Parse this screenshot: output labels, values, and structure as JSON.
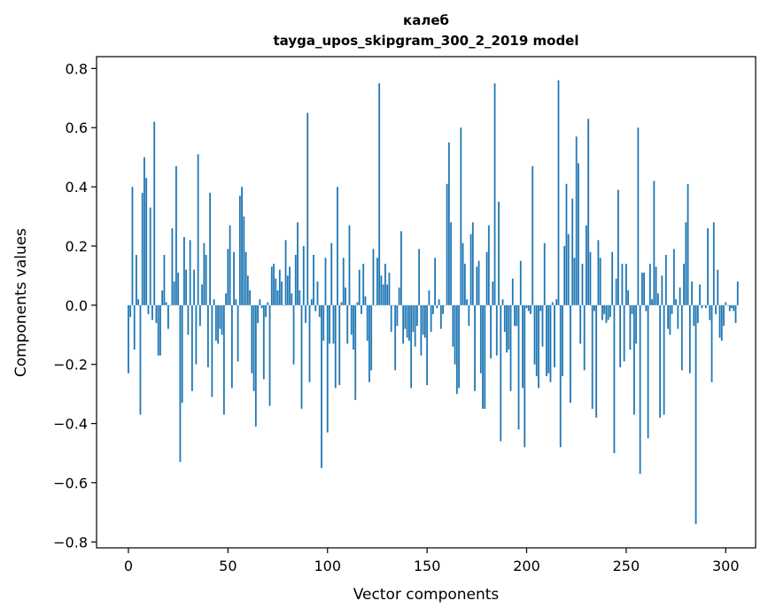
{
  "chart_data": {
    "type": "bar",
    "title": "калеб",
    "subtitle": "tayga_upos_skipgram_300_2_2019 model",
    "xlabel": "Vector components",
    "ylabel": "Components values",
    "xlim": [
      -16,
      315
    ],
    "ylim": [
      -0.82,
      0.84
    ],
    "xticks": [
      0,
      50,
      100,
      150,
      200,
      250,
      300
    ],
    "yticks": [
      -0.8,
      -0.6,
      -0.4,
      -0.2,
      0.0,
      0.2,
      0.4,
      0.6,
      0.8
    ],
    "ytick_labels": [
      "−0.8",
      "−0.6",
      "−0.4",
      "−0.2",
      "0.0",
      "0.2",
      "0.4",
      "0.6",
      "0.8"
    ],
    "grid": false,
    "bar_color": "#1f77b4",
    "x_start": 0,
    "values": [
      -0.23,
      -0.04,
      0.4,
      -0.15,
      0.17,
      0.02,
      -0.37,
      0.38,
      0.5,
      0.43,
      -0.03,
      0.33,
      -0.05,
      0.62,
      -0.06,
      -0.17,
      -0.17,
      0.05,
      0.17,
      0.01,
      -0.08,
      0.0,
      0.26,
      0.08,
      0.47,
      0.11,
      -0.53,
      -0.33,
      0.23,
      0.12,
      -0.1,
      0.22,
      -0.29,
      0.12,
      -0.2,
      0.51,
      -0.07,
      0.07,
      0.21,
      0.17,
      -0.21,
      0.38,
      -0.31,
      0.02,
      -0.12,
      -0.13,
      -0.08,
      -0.1,
      -0.37,
      0.04,
      0.19,
      0.27,
      -0.28,
      0.18,
      0.02,
      -0.19,
      0.37,
      0.4,
      0.3,
      0.18,
      0.1,
      0.05,
      -0.23,
      -0.29,
      -0.41,
      -0.06,
      0.02,
      -0.01,
      -0.25,
      -0.04,
      0.01,
      -0.34,
      0.13,
      0.14,
      0.09,
      0.05,
      0.12,
      0.08,
      0.0,
      0.22,
      0.1,
      0.13,
      0.04,
      -0.2,
      0.17,
      0.28,
      0.05,
      -0.35,
      0.2,
      -0.06,
      0.65,
      -0.26,
      0.02,
      0.17,
      -0.02,
      0.08,
      -0.04,
      -0.55,
      -0.12,
      0.16,
      -0.43,
      -0.13,
      0.21,
      -0.13,
      -0.28,
      0.4,
      -0.27,
      0.01,
      0.16,
      0.06,
      -0.13,
      0.27,
      -0.1,
      -0.15,
      -0.32,
      0.01,
      0.12,
      -0.03,
      0.14,
      0.03,
      -0.12,
      -0.26,
      -0.22,
      0.19,
      0.0,
      0.16,
      0.75,
      0.1,
      0.07,
      0.14,
      0.07,
      0.11,
      -0.09,
      0.0,
      -0.22,
      -0.07,
      0.06,
      0.25,
      -0.13,
      -0.08,
      -0.11,
      -0.12,
      -0.28,
      -0.09,
      -0.14,
      -0.07,
      0.19,
      -0.17,
      -0.1,
      -0.11,
      -0.27,
      0.05,
      -0.09,
      -0.03,
      0.16,
      -0.01,
      0.02,
      -0.08,
      -0.03,
      0.0,
      0.41,
      0.55,
      0.28,
      -0.14,
      -0.2,
      -0.3,
      -0.28,
      0.6,
      0.21,
      0.14,
      0.02,
      -0.07,
      0.24,
      0.28,
      -0.29,
      0.13,
      0.15,
      -0.23,
      -0.35,
      -0.35,
      0.18,
      0.27,
      -0.18,
      0.08,
      0.75,
      -0.17,
      0.35,
      -0.46,
      0.02,
      -0.09,
      -0.16,
      -0.15,
      -0.29,
      0.09,
      -0.07,
      -0.07,
      -0.42,
      0.15,
      -0.28,
      -0.48,
      -0.01,
      -0.02,
      -0.03,
      0.47,
      -0.2,
      -0.24,
      -0.28,
      -0.02,
      -0.14,
      0.21,
      -0.24,
      -0.23,
      -0.26,
      0.01,
      -0.21,
      0.02,
      0.76,
      -0.48,
      -0.24,
      0.2,
      0.41,
      0.24,
      -0.33,
      0.36,
      0.16,
      0.57,
      0.48,
      -0.13,
      0.14,
      -0.22,
      0.27,
      0.63,
      0.18,
      -0.35,
      -0.02,
      -0.38,
      0.22,
      0.16,
      -0.05,
      -0.03,
      -0.06,
      -0.05,
      -0.04,
      0.18,
      -0.5,
      0.09,
      0.39,
      -0.21,
      0.14,
      -0.19,
      0.14,
      0.05,
      -0.15,
      -0.03,
      -0.37,
      -0.13,
      0.6,
      -0.57,
      0.11,
      0.11,
      -0.02,
      -0.45,
      0.14,
      0.02,
      0.42,
      0.13,
      0.04,
      -0.38,
      0.1,
      -0.37,
      0.17,
      -0.08,
      -0.1,
      -0.03,
      0.19,
      0.02,
      -0.08,
      0.06,
      -0.22,
      0.14,
      0.28,
      0.41,
      -0.23,
      0.08,
      -0.07,
      -0.74,
      -0.06,
      0.07,
      -0.01,
      0.0,
      -0.01,
      0.26,
      -0.05,
      -0.26,
      0.28,
      -0.03,
      0.12,
      -0.11,
      -0.12,
      -0.07,
      0.01,
      0.0,
      -0.02,
      -0.01,
      -0.02,
      -0.06,
      0.08
    ]
  }
}
